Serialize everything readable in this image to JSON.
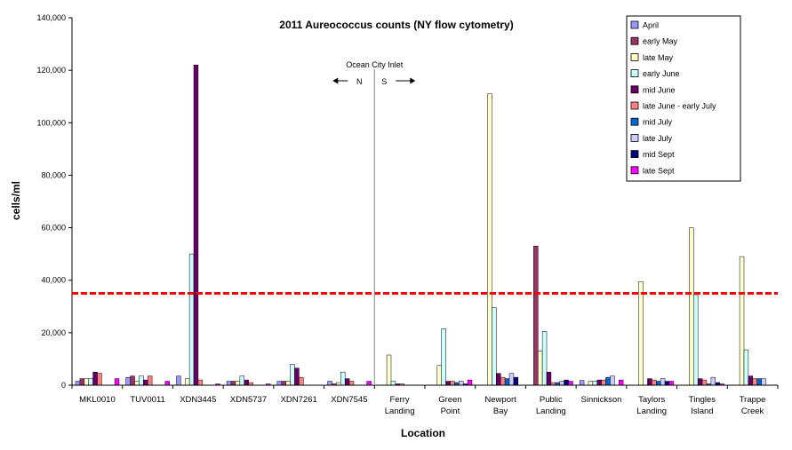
{
  "chart_data": {
    "type": "bar",
    "title": "2011 Aureococcus counts (NY flow cytometry)",
    "xlabel": "Location",
    "ylabel": "cells/ml",
    "ylim": [
      0,
      140000
    ],
    "ytick_step": 20000,
    "yticks": [
      "0",
      "20,000",
      "40,000",
      "60,000",
      "80,000",
      "100,000",
      "120,000",
      "140,000"
    ],
    "categories": [
      "MKL0010",
      "TUV0011",
      "XDN3445",
      "XDN5737",
      "XDN7261",
      "XDN7545",
      "Ferry Landing",
      "Green Point",
      "Newport Bay",
      "Public Landing",
      "Sinnickson",
      "Taylors Landing",
      "Tingles Island",
      "Trappe Creek"
    ],
    "category_labels": [
      [
        "MKL0010"
      ],
      [
        "TUV0011"
      ],
      [
        "XDN3445"
      ],
      [
        "XDN5737"
      ],
      [
        "XDN7261"
      ],
      [
        "XDN7545"
      ],
      [
        "Ferry",
        "Landing"
      ],
      [
        "Green",
        "Point"
      ],
      [
        "Newport",
        "Bay"
      ],
      [
        "Public",
        "Landing"
      ],
      [
        "Sinnickson"
      ],
      [
        "Taylors",
        "Landing"
      ],
      [
        "Tingles",
        "Island"
      ],
      [
        "Trappe",
        "Creek"
      ]
    ],
    "series": [
      {
        "name": "April",
        "color": "#9999FF",
        "values": [
          1500,
          3000,
          3500,
          1500,
          1500,
          1500,
          0,
          0,
          0,
          0,
          1800,
          0,
          0,
          0
        ]
      },
      {
        "name": "early May",
        "color": "#993366",
        "values": [
          2500,
          3500,
          0,
          1500,
          1500,
          500,
          0,
          0,
          0,
          53000,
          0,
          0,
          0,
          0
        ]
      },
      {
        "name": "late May",
        "color": "#FFFFCC",
        "values": [
          2500,
          1500,
          2500,
          1500,
          1500,
          1000,
          11500,
          7500,
          111000,
          13000,
          1500,
          39500,
          60000,
          49000
        ]
      },
      {
        "name": "early June",
        "color": "#CCFFFF",
        "values": [
          2500,
          3500,
          50000,
          3500,
          8000,
          5000,
          1500,
          21500,
          29500,
          20500,
          1500,
          0,
          34500,
          13500
        ]
      },
      {
        "name": "mid June",
        "color": "#660066",
        "values": [
          5000,
          2000,
          122000,
          2000,
          6500,
          2500,
          500,
          1500,
          4500,
          5000,
          2000,
          2500,
          2500,
          3500
        ]
      },
      {
        "name": "late June - early July",
        "color": "#FF8080",
        "values": [
          4500,
          3500,
          2000,
          1000,
          3000,
          1500,
          500,
          1500,
          3000,
          1000,
          2000,
          2000,
          2000,
          2500
        ]
      },
      {
        "name": "mid July",
        "color": "#0066CC",
        "values": [
          0,
          0,
          0,
          0,
          0,
          0,
          0,
          1000,
          2500,
          1000,
          3000,
          1500,
          500,
          2500
        ]
      },
      {
        "name": "late July",
        "color": "#CCCCFF",
        "values": [
          0,
          0,
          0,
          0,
          0,
          0,
          0,
          1500,
          4500,
          1500,
          3500,
          2500,
          3000,
          2500
        ]
      },
      {
        "name": "mid Sept",
        "color": "#000080",
        "values": [
          0,
          0,
          0,
          0,
          0,
          0,
          0,
          500,
          3000,
          2000,
          0,
          1500,
          1000,
          0
        ]
      },
      {
        "name": "late Sept",
        "color": "#FF00FF",
        "values": [
          2500,
          1500,
          500,
          500,
          0,
          1500,
          0,
          2000,
          0,
          1500,
          2000,
          1500,
          500,
          0
        ]
      }
    ],
    "reference_line": {
      "value": 35000,
      "color": "#FF0000",
      "style": "dashed"
    },
    "divider": {
      "after_category": "XDN7545",
      "label": "Ocean City Inlet",
      "left_label": "N",
      "right_label": "S"
    },
    "legend_position": "top-right"
  }
}
